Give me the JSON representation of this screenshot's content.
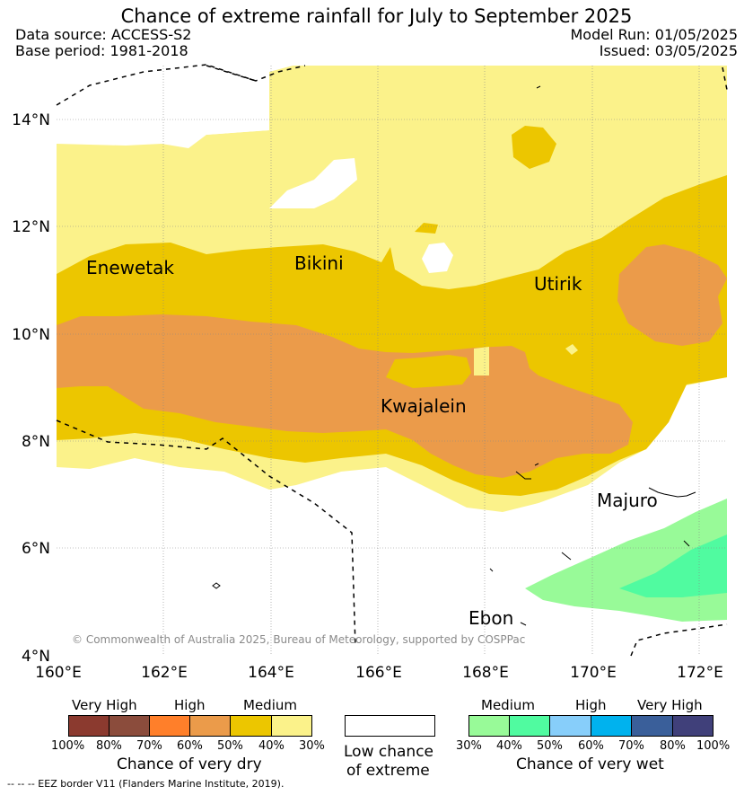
{
  "header": {
    "title": "Chance of extreme rainfall for July to September 2025",
    "data_source": "Data source: ACCESS-S2",
    "base_period": "Base period: 1981-2018",
    "model_run": "Model Run: 01/05/2025",
    "issued": "Issued: 03/05/2025"
  },
  "map": {
    "lat_labels": [
      "14°N",
      "12°N",
      "10°N",
      "8°N",
      "6°N",
      "4°N"
    ],
    "lon_labels": [
      "160°E",
      "162°E",
      "164°E",
      "166°E",
      "168°E",
      "170°E",
      "172°E"
    ],
    "places": [
      "Enewetak",
      "Bikini",
      "Utirik",
      "Kwajalein",
      "Majuro",
      "Ebon"
    ],
    "copyright": "© Commonwealth of Australia 2025, Bureau of Meteorology, supported by COSPPac",
    "colors": {
      "dry_very_high_1": "#8b3a2f",
      "dry_very_high_2": "#8b4c3c",
      "dry_high_1": "#ff7f2a",
      "dry_high_2": "#eb9b4a",
      "dry_medium_1": "#ecc600",
      "dry_medium_2": "#fbf28a",
      "wet_medium_1": "#98fa98",
      "wet_medium_2": "#50fba0",
      "wet_high_1": "#87cefa",
      "wet_high_2": "#00b2ee",
      "wet_very_high_1": "#3a5f9a",
      "wet_very_high_2": "#40407a"
    }
  },
  "legend": {
    "dry": {
      "categories": [
        "Very High",
        "High",
        "Medium"
      ],
      "ticks": [
        "100%",
        "80%",
        "70%",
        "60%",
        "50%",
        "40%",
        "30%"
      ],
      "caption": "Chance of very dry"
    },
    "low": {
      "line1": "Low chance",
      "line2": "of extreme"
    },
    "wet": {
      "categories": [
        "Medium",
        "High",
        "Very High"
      ],
      "ticks": [
        "30%",
        "40%",
        "50%",
        "60%",
        "70%",
        "80%",
        "100%"
      ],
      "caption": "Chance of very wet"
    },
    "eez_note": "--  --  -- EEZ border V11 (Flanders Marine Institute, 2019)."
  }
}
